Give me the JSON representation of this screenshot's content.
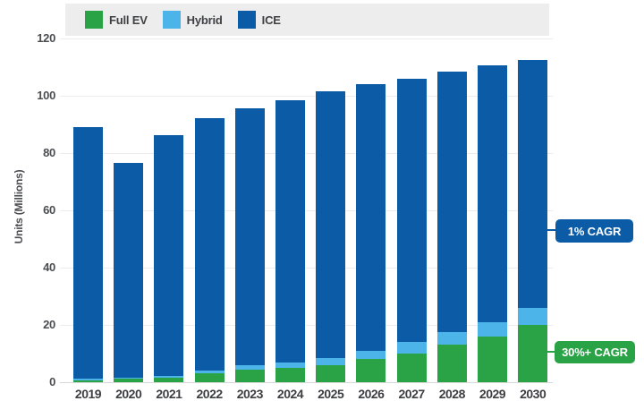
{
  "legend": {
    "items": [
      {
        "label": "Full EV",
        "color": "#2aa347"
      },
      {
        "label": "Hybrid",
        "color": "#4cb4e8"
      },
      {
        "label": "ICE",
        "color": "#0c5ba6"
      }
    ]
  },
  "y_axis": {
    "title": "Units (Millions)"
  },
  "callouts": {
    "ice": {
      "label": "1% CAGR",
      "color": "#0c5ba6"
    },
    "ev": {
      "label": "30%+ CAGR",
      "color": "#2aa347"
    }
  },
  "chart_data": {
    "type": "bar",
    "stacked": true,
    "title": "",
    "xlabel": "",
    "ylabel": "Units (Millions)",
    "ylim": [
      0,
      120
    ],
    "yticks": [
      0,
      20,
      40,
      60,
      80,
      100,
      120
    ],
    "grid": true,
    "legend_position": "top",
    "categories": [
      "2019",
      "2020",
      "2021",
      "2022",
      "2023",
      "2024",
      "2025",
      "2026",
      "2027",
      "2028",
      "2029",
      "2030"
    ],
    "series": [
      {
        "name": "Full EV",
        "color": "#2aa347",
        "values": [
          0.7,
          1.2,
          1.5,
          3,
          4.5,
          5,
          6,
          8,
          10,
          13,
          16,
          20
        ]
      },
      {
        "name": "Hybrid",
        "color": "#4cb4e8",
        "values": [
          0.4,
          0.4,
          0.6,
          1.2,
          1.5,
          2,
          2.5,
          3,
          4,
          4.5,
          5,
          6
        ]
      },
      {
        "name": "ICE",
        "color": "#0c5ba6",
        "values": [
          88,
          75,
          84,
          88,
          89.5,
          91.5,
          93,
          93,
          92,
          91,
          89.5,
          86.5
        ]
      }
    ],
    "totals": [
      89.1,
      76.6,
      86.1,
      92.2,
      95.5,
      98.5,
      101.5,
      104,
      106,
      108.5,
      110.5,
      112.5
    ],
    "annotations": [
      {
        "label": "1% CAGR",
        "applies_to": "ICE"
      },
      {
        "label": "30%+ CAGR",
        "applies_to": "Full EV + Hybrid"
      }
    ]
  }
}
